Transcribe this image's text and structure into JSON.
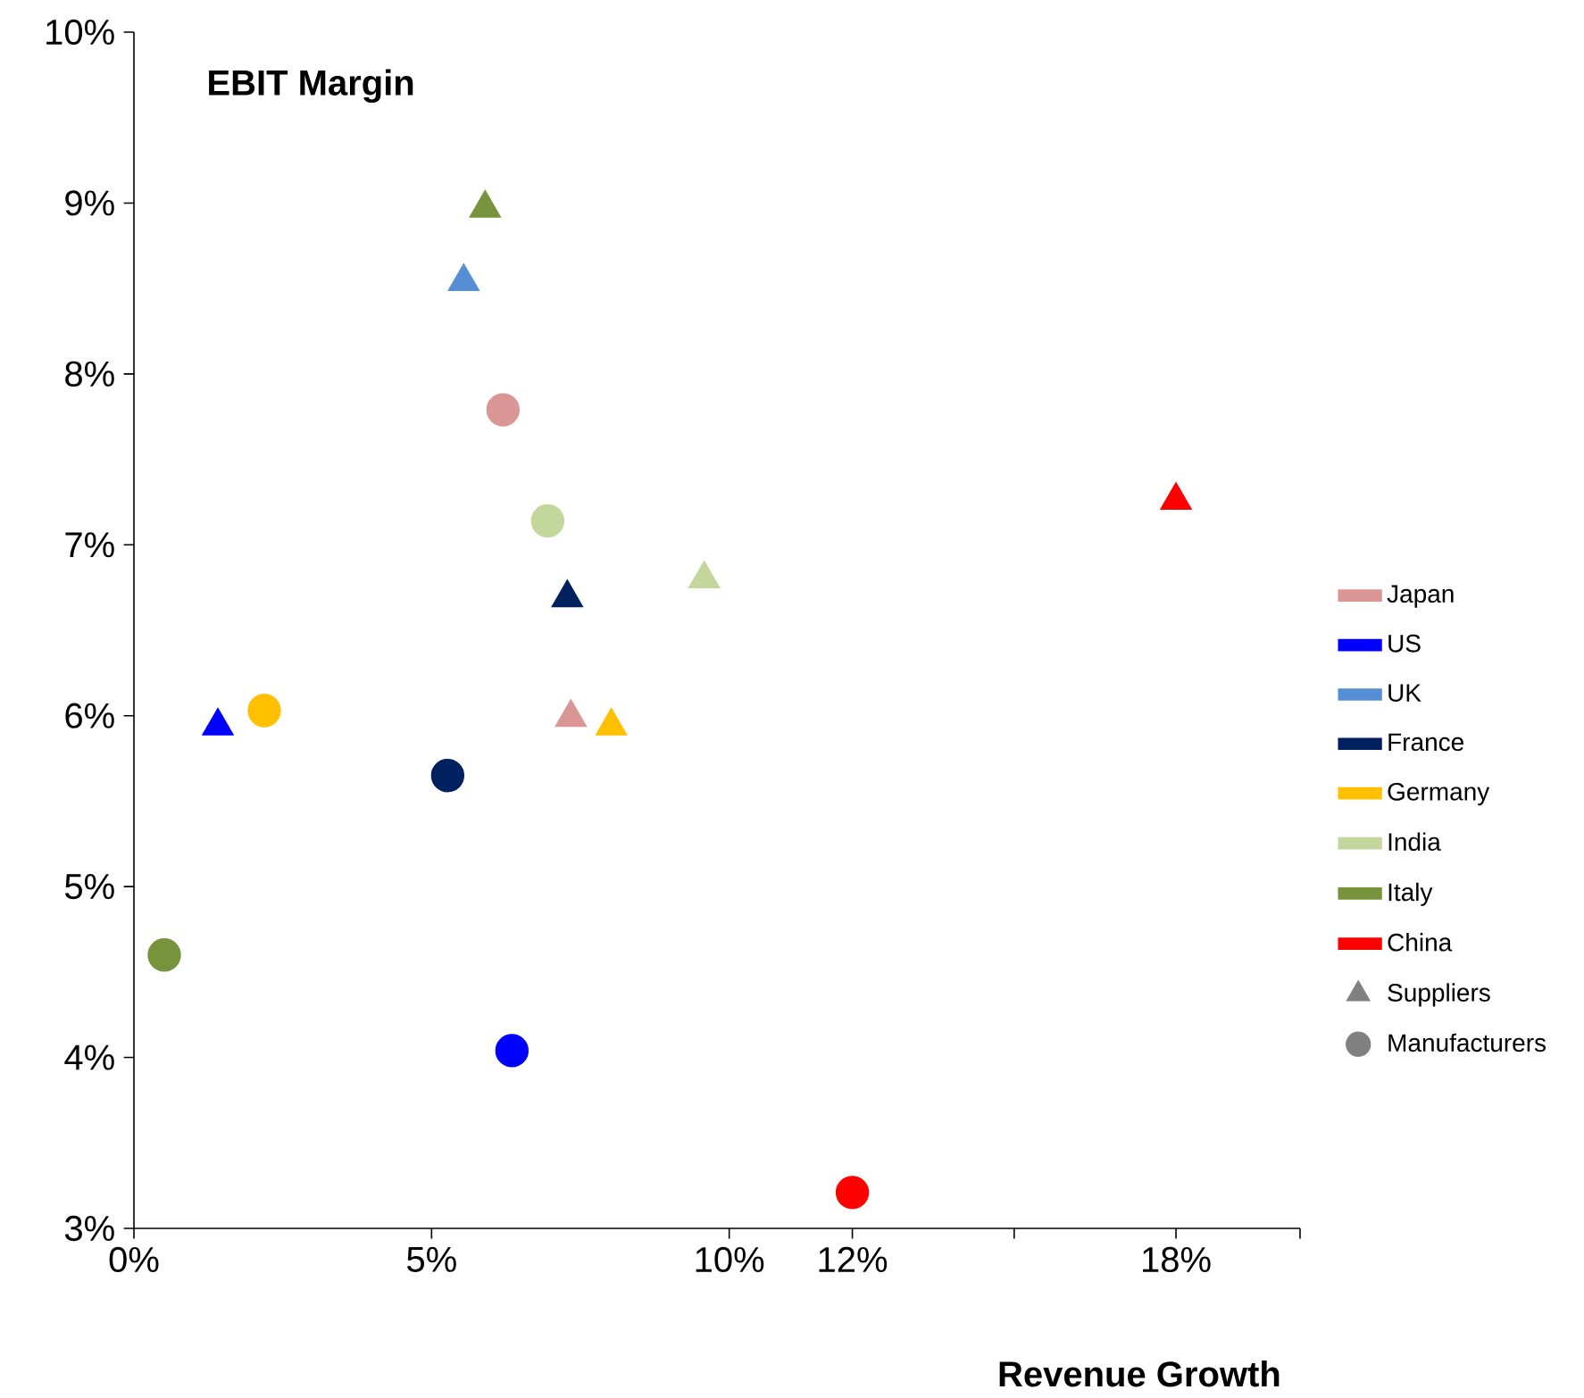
{
  "chart_data": [
    {
      "type": "scatter",
      "ylabel": "EBIT Margin",
      "xlim": [
        0,
        10.8
      ],
      "xticks": [
        {
          "value": 0,
          "label": "0%"
        },
        {
          "value": 5,
          "label": "5%"
        },
        {
          "value": 10,
          "label": "10%"
        }
      ],
      "ylim": [
        3,
        10
      ],
      "yticks": [
        {
          "value": 3,
          "label": "3%"
        },
        {
          "value": 4,
          "label": "4%"
        },
        {
          "value": 5,
          "label": "5%"
        },
        {
          "value": 6,
          "label": "6%"
        },
        {
          "value": 7,
          "label": "7%"
        },
        {
          "value": 8,
          "label": "8%"
        },
        {
          "value": 9,
          "label": "9%"
        },
        {
          "value": 10,
          "label": "10%"
        }
      ],
      "legend": "right",
      "marker": "triangle",
      "grid": false,
      "series": [
        {
          "name": "Japan",
          "color": "#d99694",
          "x": [
            7.34
          ],
          "values": [
            5.99
          ]
        },
        {
          "name": "US",
          "color": "#0000ff",
          "x": [
            1.41
          ],
          "values": [
            5.94
          ]
        },
        {
          "name": "UK",
          "color": "#558ed5",
          "x": [
            5.54
          ],
          "values": [
            8.54
          ]
        },
        {
          "name": "France",
          "color": "#002060",
          "x": [
            7.28
          ],
          "values": [
            6.69
          ]
        },
        {
          "name": "Germany",
          "color": "#ffc000",
          "x": [
            8.02
          ],
          "values": [
            5.94
          ]
        },
        {
          "name": "India",
          "color": "#c3d69b",
          "x": [
            9.58
          ],
          "values": [
            6.8
          ]
        },
        {
          "name": "Italy",
          "color": "#77933c",
          "x": [
            5.9
          ],
          "values": [
            8.97
          ]
        },
        {
          "name": "China",
          "color": "#ff0000"
        },
        {
          "name": "Suppliers",
          "color": "#808080",
          "marker": "triangle"
        },
        {
          "name": "Manufacturers",
          "color": "#808080",
          "marker": "circle"
        },
        {
          "color": "#d99694",
          "marker": "circle",
          "x": [
            6.2
          ],
          "values": [
            7.79
          ]
        },
        {
          "color": "#0000ff",
          "marker": "circle",
          "x": [
            6.35
          ],
          "values": [
            4.04
          ]
        },
        {
          "color": "#002060",
          "marker": "circle",
          "x": [
            5.27
          ],
          "values": [
            5.65
          ]
        },
        {
          "color": "#ffc000",
          "marker": "circle",
          "x": [
            2.19
          ],
          "values": [
            6.03
          ]
        },
        {
          "color": "#c3d69b",
          "marker": "circle",
          "x": [
            6.95
          ],
          "values": [
            7.14
          ]
        },
        {
          "color": "#77933c",
          "marker": "circle",
          "x": [
            0.51
          ],
          "values": [
            4.6
          ]
        }
      ]
    },
    {
      "type": "scatter",
      "xlabel": "Revenue Growth",
      "xlim": [
        10.6,
        20.3
      ],
      "xticks": [
        {
          "value": 12,
          "label": "12%"
        },
        {
          "value": 15,
          "label": null
        },
        {
          "value": 18,
          "label": "18%"
        },
        {
          "value": 20.3,
          "label": null
        }
      ],
      "ylim": [
        3,
        10
      ],
      "tick_labels": "x",
      "marker": "triangle",
      "grid": false,
      "series": [
        {
          "color": "#ff0000",
          "x": [
            18.0
          ],
          "values": [
            7.26
          ]
        },
        {
          "color": "#ff0000",
          "marker": "circle",
          "x": [
            12.0
          ],
          "values": [
            3.21
          ]
        }
      ]
    }
  ]
}
